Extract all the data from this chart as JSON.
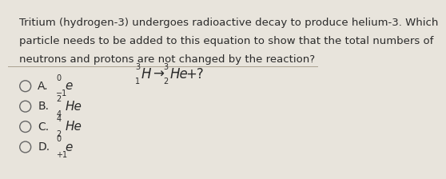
{
  "background_color": "#e8e4dc",
  "question_text_lines": [
    "Tritium (hydrogen-3) undergoes radioactive decay to produce helium-3. Which",
    "particle needs to be added to this equation to show that the total numbers of",
    "neutrons and protons are not changed by the reaction?"
  ],
  "equation": {
    "left_super": "3",
    "left_sub": "1",
    "left_symbol": "H",
    "arrow": "→",
    "right_super": "3",
    "right_sub": "2",
    "right_symbol": "He",
    "suffix": "+?"
  },
  "options": [
    {
      "letter": "A.",
      "super": "0",
      "sub": "−1",
      "symbol": "e"
    },
    {
      "letter": "B.",
      "super": "2",
      "sub": "4",
      "symbol": "He"
    },
    {
      "letter": "C.",
      "super": "4",
      "sub": "2",
      "symbol": "He"
    },
    {
      "letter": "D.",
      "super": "0",
      "sub": "+1",
      "symbol": "e"
    }
  ],
  "text_color": "#2a2a2a",
  "question_fontsize": 9.5,
  "option_letter_fontsize": 10,
  "option_symbol_fontsize": 11,
  "script_fontsize": 7,
  "equation_fontsize": 12
}
